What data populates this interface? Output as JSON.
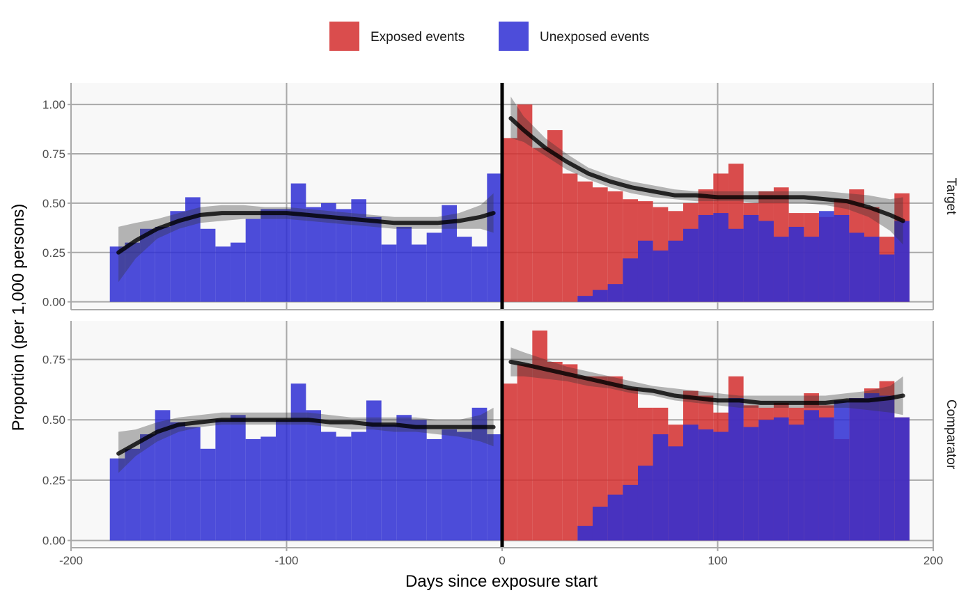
{
  "chart_data": {
    "type": "bar",
    "xlabel": "Days since exposure start",
    "ylabel": "Proportion (per 1,000 persons)",
    "xlim": [
      -200,
      200
    ],
    "x_ticks": [
      -200,
      -100,
      0,
      100,
      200
    ],
    "x_tick_labels": [
      "-200",
      "-100",
      "0",
      "100",
      "200"
    ],
    "bin_width": 7,
    "legend": {
      "position": "top",
      "items": [
        {
          "label": "Exposed events",
          "color": "#d42e2e"
        },
        {
          "label": "Unexposed events",
          "color": "#2e2ed4"
        }
      ]
    },
    "grid": true,
    "vline_x": 0,
    "panels": [
      {
        "label": "Target",
        "ylim": [
          -0.04,
          1.11
        ],
        "y_ticks": [
          0,
          0.25,
          0.5,
          0.75,
          1.0
        ],
        "y_tick_labels": [
          "0.00",
          "0.25",
          "0.50",
          "0.75",
          "1.00"
        ],
        "pre_bin_starts": [
          -182,
          -175,
          -168,
          -161,
          -154,
          -147,
          -140,
          -133,
          -126,
          -119,
          -112,
          -105,
          -98,
          -91,
          -84,
          -77,
          -70,
          -63,
          -56,
          -49,
          -42,
          -35,
          -28,
          -21,
          -14,
          -7
        ],
        "pre_unexposed": [
          0.28,
          0.3,
          0.37,
          0.38,
          0.46,
          0.53,
          0.37,
          0.28,
          0.3,
          0.42,
          0.47,
          0.47,
          0.6,
          0.48,
          0.5,
          0.47,
          0.52,
          0.43,
          0.29,
          0.38,
          0.29,
          0.35,
          0.49,
          0.33,
          0.28,
          0.65
        ],
        "post_bin_starts": [
          0,
          7,
          14,
          21,
          28,
          35,
          42,
          49,
          56,
          63,
          70,
          77,
          84,
          91,
          98,
          105,
          112,
          119,
          126,
          133,
          140,
          147,
          154,
          161,
          168,
          175,
          182
        ],
        "post_exposed": [
          0.83,
          1.0,
          0.78,
          0.87,
          0.65,
          0.61,
          0.58,
          0.56,
          0.52,
          0.51,
          0.48,
          0.46,
          0.5,
          0.57,
          0.65,
          0.7,
          0.5,
          0.56,
          0.58,
          0.45,
          0.45,
          0.43,
          0.52,
          0.57,
          0.48,
          0.33,
          0.55
        ],
        "post_unexposed": [
          0.0,
          0.0,
          0.0,
          0.0,
          0.0,
          0.03,
          0.06,
          0.09,
          0.22,
          0.31,
          0.26,
          0.31,
          0.37,
          0.44,
          0.45,
          0.37,
          0.44,
          0.41,
          0.33,
          0.38,
          0.33,
          0.46,
          0.44,
          0.35,
          0.33,
          0.24,
          0.41
        ],
        "pre_fit": {
          "x": [
            -178,
            -170,
            -160,
            -150,
            -140,
            -130,
            -120,
            -110,
            -100,
            -90,
            -80,
            -70,
            -60,
            -50,
            -40,
            -30,
            -20,
            -10,
            -4
          ],
          "y": [
            0.25,
            0.31,
            0.37,
            0.41,
            0.44,
            0.45,
            0.45,
            0.45,
            0.45,
            0.44,
            0.43,
            0.42,
            0.41,
            0.4,
            0.4,
            0.4,
            0.41,
            0.43,
            0.45
          ],
          "ci_low": [
            0.1,
            0.22,
            0.32,
            0.37,
            0.4,
            0.41,
            0.42,
            0.42,
            0.42,
            0.41,
            0.4,
            0.39,
            0.38,
            0.37,
            0.37,
            0.37,
            0.37,
            0.37,
            0.35
          ],
          "ci_high": [
            0.38,
            0.4,
            0.42,
            0.45,
            0.48,
            0.49,
            0.49,
            0.48,
            0.48,
            0.47,
            0.46,
            0.45,
            0.44,
            0.43,
            0.43,
            0.43,
            0.45,
            0.49,
            0.55
          ]
        },
        "post_fit": {
          "x": [
            4,
            10,
            20,
            30,
            40,
            50,
            60,
            70,
            80,
            90,
            100,
            110,
            120,
            130,
            140,
            150,
            160,
            170,
            180,
            186
          ],
          "y": [
            0.93,
            0.87,
            0.78,
            0.71,
            0.65,
            0.61,
            0.58,
            0.56,
            0.54,
            0.54,
            0.53,
            0.53,
            0.53,
            0.53,
            0.53,
            0.52,
            0.51,
            0.48,
            0.44,
            0.41
          ],
          "ci_low": [
            0.83,
            0.81,
            0.74,
            0.67,
            0.62,
            0.58,
            0.55,
            0.53,
            0.52,
            0.51,
            0.51,
            0.51,
            0.5,
            0.5,
            0.5,
            0.49,
            0.47,
            0.43,
            0.36,
            0.29
          ],
          "ci_high": [
            1.04,
            0.94,
            0.83,
            0.75,
            0.68,
            0.64,
            0.61,
            0.59,
            0.57,
            0.56,
            0.56,
            0.56,
            0.56,
            0.56,
            0.56,
            0.56,
            0.55,
            0.54,
            0.52,
            0.53
          ]
        }
      },
      {
        "label": "Comparator",
        "ylim": [
          -0.03,
          0.91
        ],
        "y_ticks": [
          0,
          0.25,
          0.5,
          0.75
        ],
        "y_tick_labels": [
          "0.00",
          "0.25",
          "0.50",
          "0.75"
        ],
        "pre_bin_starts": [
          -182,
          -175,
          -168,
          -161,
          -154,
          -147,
          -140,
          -133,
          -126,
          -119,
          -112,
          -105,
          -98,
          -91,
          -84,
          -77,
          -70,
          -63,
          -56,
          -49,
          -42,
          -35,
          -28,
          -21,
          -14,
          -7
        ],
        "pre_unexposed": [
          0.34,
          0.38,
          0.44,
          0.54,
          0.49,
          0.47,
          0.38,
          0.5,
          0.52,
          0.42,
          0.43,
          0.5,
          0.65,
          0.54,
          0.45,
          0.43,
          0.45,
          0.58,
          0.48,
          0.52,
          0.5,
          0.42,
          0.46,
          0.45,
          0.55,
          0.44
        ],
        "post_bin_starts": [
          0,
          7,
          14,
          21,
          28,
          35,
          42,
          49,
          56,
          63,
          70,
          77,
          84,
          91,
          98,
          105,
          112,
          119,
          126,
          133,
          140,
          147,
          154,
          161,
          168,
          175,
          182
        ],
        "post_exposed": [
          0.65,
          0.73,
          0.87,
          0.74,
          0.73,
          0.68,
          0.68,
          0.68,
          0.63,
          0.55,
          0.55,
          0.48,
          0.62,
          0.6,
          0.53,
          0.68,
          0.56,
          0.55,
          0.57,
          0.55,
          0.61,
          0.56,
          0.42,
          0.59,
          0.63,
          0.66,
          0.51
        ],
        "post_unexposed": [
          0.0,
          0.0,
          0.0,
          0.0,
          0.0,
          0.06,
          0.14,
          0.19,
          0.23,
          0.31,
          0.44,
          0.39,
          0.48,
          0.46,
          0.45,
          0.59,
          0.47,
          0.5,
          0.51,
          0.48,
          0.54,
          0.51,
          0.58,
          0.59,
          0.61,
          0.6,
          0.51
        ],
        "pre_fit": {
          "x": [
            -178,
            -170,
            -160,
            -150,
            -140,
            -130,
            -120,
            -110,
            -100,
            -90,
            -80,
            -70,
            -60,
            -50,
            -40,
            -30,
            -20,
            -10,
            -4
          ],
          "y": [
            0.36,
            0.4,
            0.45,
            0.48,
            0.49,
            0.5,
            0.5,
            0.5,
            0.5,
            0.5,
            0.49,
            0.49,
            0.48,
            0.48,
            0.47,
            0.47,
            0.47,
            0.47,
            0.47
          ],
          "ci_low": [
            0.28,
            0.35,
            0.41,
            0.45,
            0.47,
            0.48,
            0.48,
            0.48,
            0.48,
            0.48,
            0.47,
            0.46,
            0.46,
            0.45,
            0.45,
            0.44,
            0.43,
            0.41,
            0.39
          ],
          "ci_high": [
            0.45,
            0.46,
            0.49,
            0.51,
            0.52,
            0.53,
            0.53,
            0.53,
            0.53,
            0.53,
            0.52,
            0.51,
            0.51,
            0.51,
            0.51,
            0.5,
            0.5,
            0.52,
            0.55
          ]
        },
        "post_fit": {
          "x": [
            4,
            10,
            20,
            30,
            40,
            50,
            60,
            70,
            80,
            90,
            100,
            110,
            120,
            130,
            140,
            150,
            160,
            170,
            180,
            186
          ],
          "y": [
            0.74,
            0.73,
            0.71,
            0.69,
            0.67,
            0.65,
            0.63,
            0.62,
            0.6,
            0.59,
            0.58,
            0.58,
            0.57,
            0.57,
            0.57,
            0.57,
            0.58,
            0.58,
            0.59,
            0.6
          ],
          "ci_low": [
            0.68,
            0.68,
            0.67,
            0.66,
            0.64,
            0.63,
            0.61,
            0.6,
            0.58,
            0.57,
            0.56,
            0.55,
            0.55,
            0.55,
            0.55,
            0.55,
            0.55,
            0.54,
            0.53,
            0.52
          ],
          "ci_high": [
            0.8,
            0.78,
            0.75,
            0.72,
            0.7,
            0.68,
            0.66,
            0.64,
            0.63,
            0.62,
            0.61,
            0.6,
            0.6,
            0.6,
            0.6,
            0.6,
            0.61,
            0.62,
            0.64,
            0.68
          ]
        }
      }
    ]
  }
}
